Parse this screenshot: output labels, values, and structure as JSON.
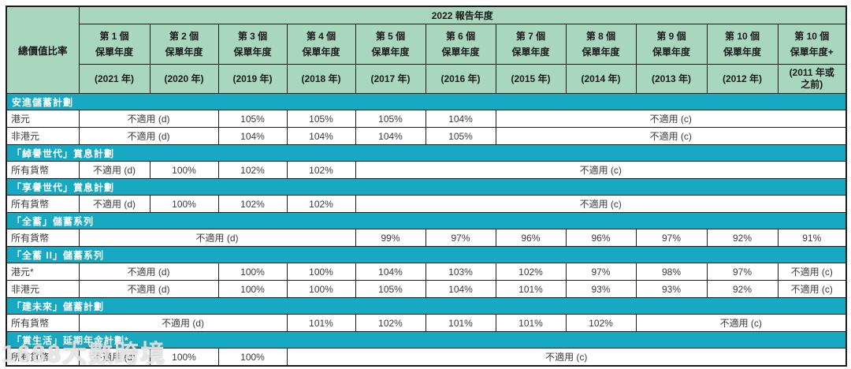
{
  "colors": {
    "header_green": "#a9d6bf",
    "section_teal": "#17a9c1"
  },
  "watermark": {
    "text": "1688大數跨境"
  },
  "header": {
    "corner_label": "總價值比率",
    "report_year_label": "2022 報告年度",
    "columns": [
      {
        "line1": "第 1 個",
        "line2": "保單年度",
        "year": "(2021 年)"
      },
      {
        "line1": "第 2 個",
        "line2": "保單年度",
        "year": "(2020 年)"
      },
      {
        "line1": "第 3 個",
        "line2": "保單年度",
        "year": "(2019 年)"
      },
      {
        "line1": "第 4 個",
        "line2": "保單年度",
        "year": "(2018 年)"
      },
      {
        "line1": "第 5 個",
        "line2": "保單年度",
        "year": "(2017 年)"
      },
      {
        "line1": "第 6 個",
        "line2": "保單年度",
        "year": "(2016 年)"
      },
      {
        "line1": "第 7 個",
        "line2": "保單年度",
        "year": "(2015 年)"
      },
      {
        "line1": "第 8 個",
        "line2": "保單年度",
        "year": "(2014 年)"
      },
      {
        "line1": "第 9 個",
        "line2": "保單年度",
        "year": "(2013 年)"
      },
      {
        "line1": "第 10 個",
        "line2": "保單年度",
        "year": "(2012 年)"
      },
      {
        "line1": "第 10 個",
        "line2": "保單年度+",
        "year": "(2011 年或\n之前)"
      }
    ]
  },
  "sections": [
    {
      "title": "安進儲蓄計劃",
      "rows": [
        {
          "label": "港元",
          "cells": [
            {
              "text": "不適用 (d)",
              "span": 2
            },
            {
              "text": "105%"
            },
            {
              "text": "105%"
            },
            {
              "text": "105%"
            },
            {
              "text": "104%"
            },
            {
              "text": "不適用 (c)",
              "span": 5
            }
          ]
        },
        {
          "label": "非港元",
          "cells": [
            {
              "text": "不適用 (d)",
              "span": 2
            },
            {
              "text": "104%"
            },
            {
              "text": "104%"
            },
            {
              "text": "104%"
            },
            {
              "text": "105%"
            },
            {
              "text": "不適用 (c)",
              "span": 5
            }
          ]
        }
      ]
    },
    {
      "title": "「綽譽世代」賞息計劃",
      "rows": [
        {
          "label": "所有貨幣",
          "cells": [
            {
              "text": "不適用 (d)"
            },
            {
              "text": "100%"
            },
            {
              "text": "102%"
            },
            {
              "text": "102%"
            },
            {
              "text": "不適用 (c)",
              "span": 7
            }
          ]
        }
      ]
    },
    {
      "title": "「享譽世代」賞息計劃",
      "rows": [
        {
          "label": "所有貨幣",
          "cells": [
            {
              "text": "不適用 (d)"
            },
            {
              "text": "100%"
            },
            {
              "text": "102%"
            },
            {
              "text": "102%"
            },
            {
              "text": "不適用 (c)",
              "span": 7
            }
          ]
        }
      ]
    },
    {
      "title": "「全蓄」儲蓄系列",
      "rows": [
        {
          "label": "所有貨幣",
          "cells": [
            {
              "text": "不適用 (d)",
              "span": 4
            },
            {
              "text": "99%"
            },
            {
              "text": "97%"
            },
            {
              "text": "96%"
            },
            {
              "text": "96%"
            },
            {
              "text": "97%"
            },
            {
              "text": "92%"
            },
            {
              "text": "91%"
            }
          ]
        }
      ]
    },
    {
      "title": "「全蓄 II」儲蓄系列",
      "rows": [
        {
          "label": "港元*",
          "cells": [
            {
              "text": "不適用 (d)",
              "span": 2
            },
            {
              "text": "100%"
            },
            {
              "text": "100%"
            },
            {
              "text": "104%"
            },
            {
              "text": "103%"
            },
            {
              "text": "102%"
            },
            {
              "text": "97%"
            },
            {
              "text": "98%"
            },
            {
              "text": "97%"
            },
            {
              "text": "不適用 (c)"
            }
          ]
        },
        {
          "label": "非港元",
          "cells": [
            {
              "text": "不適用 (d)",
              "span": 2
            },
            {
              "text": "100%"
            },
            {
              "text": "100%"
            },
            {
              "text": "105%"
            },
            {
              "text": "104%"
            },
            {
              "text": "101%"
            },
            {
              "text": "93%"
            },
            {
              "text": "93%"
            },
            {
              "text": "92%"
            },
            {
              "text": "不適用 (c)"
            }
          ]
        }
      ]
    },
    {
      "title": "「建未來」儲蓄計劃",
      "rows": [
        {
          "label": "所有貨幣",
          "cells": [
            {
              "text": "不適用 (d)",
              "span": 3
            },
            {
              "text": "101%"
            },
            {
              "text": "102%"
            },
            {
              "text": "101%"
            },
            {
              "text": "101%"
            },
            {
              "text": "102%"
            },
            {
              "text": "不適用 (c)",
              "span": 3
            }
          ]
        }
      ]
    },
    {
      "title": "「賞生活」延期年金計劃*",
      "rows": [
        {
          "label": "所有貨幣",
          "cells": [
            {
              "text": "不適用 (d)"
            },
            {
              "text": "100%"
            },
            {
              "text": "100%"
            },
            {
              "text": "不適用 (c)",
              "span": 8
            }
          ]
        }
      ]
    }
  ]
}
